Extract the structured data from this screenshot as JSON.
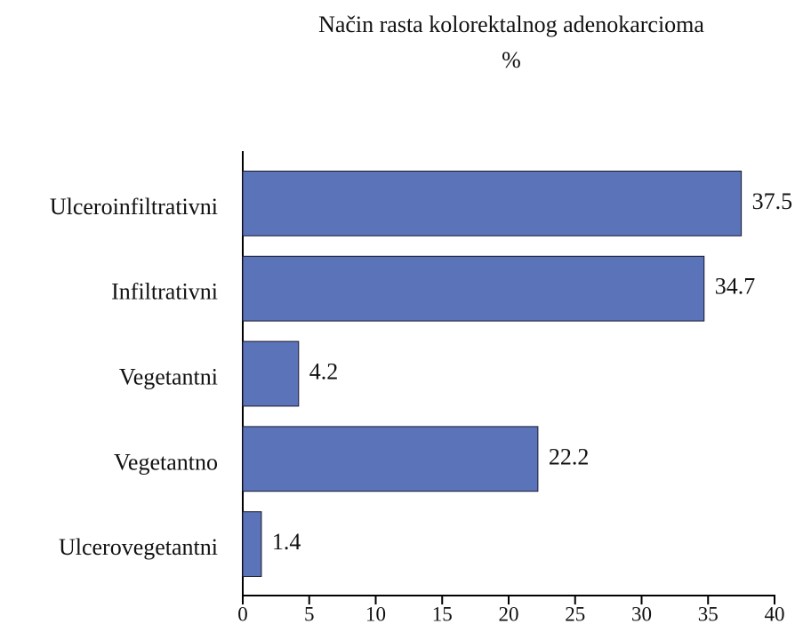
{
  "chart_data": {
    "type": "bar",
    "orientation": "horizontal",
    "title": "Način rasta kolorektalnog adenokarcioma",
    "subtitle": "%",
    "categories": [
      "Ulceroinfiltrativni",
      "Infiltrativni",
      "Vegetantni",
      "Vegetantno",
      "Ulcerovegetantni"
    ],
    "values": [
      37.5,
      34.7,
      4.2,
      22.2,
      1.4
    ],
    "color": "#5b73b8",
    "xlim": [
      0,
      40
    ],
    "xticks": [
      0,
      5,
      10,
      15,
      20,
      25,
      30,
      35,
      40
    ]
  }
}
